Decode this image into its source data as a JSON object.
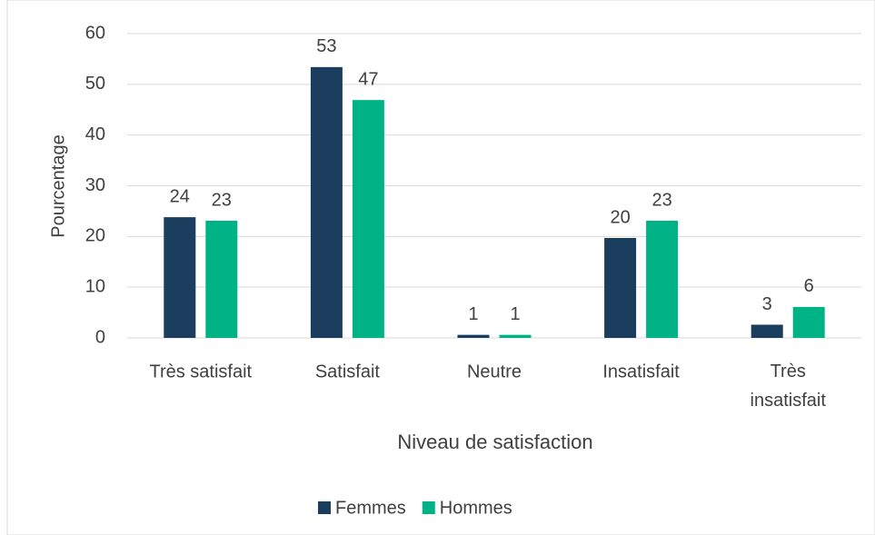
{
  "chart_data": {
    "type": "bar",
    "categories": [
      "Très satisfait",
      "Satisfait",
      "Neutre",
      "Insatisfait",
      "Très insatisfait"
    ],
    "series": [
      {
        "name": "Femmes",
        "color": "#1b3d5e",
        "values": [
          23.8,
          53.4,
          0.6,
          19.7,
          2.6
        ],
        "value_labels": [
          "24",
          "53",
          "1",
          "20",
          "3"
        ]
      },
      {
        "name": "Hommes",
        "color": "#00b386",
        "values": [
          23.1,
          46.9,
          0.6,
          23.1,
          6.1
        ],
        "value_labels": [
          "23",
          "47",
          "1",
          "23",
          "6"
        ]
      }
    ],
    "ylim": [
      0,
      60
    ],
    "yticks": [
      0,
      10,
      20,
      30,
      40,
      50,
      60
    ],
    "grid": true,
    "ylabel": "Pourcentage",
    "xlabel": "Niveau de satisfaction",
    "legend": "bottom"
  }
}
